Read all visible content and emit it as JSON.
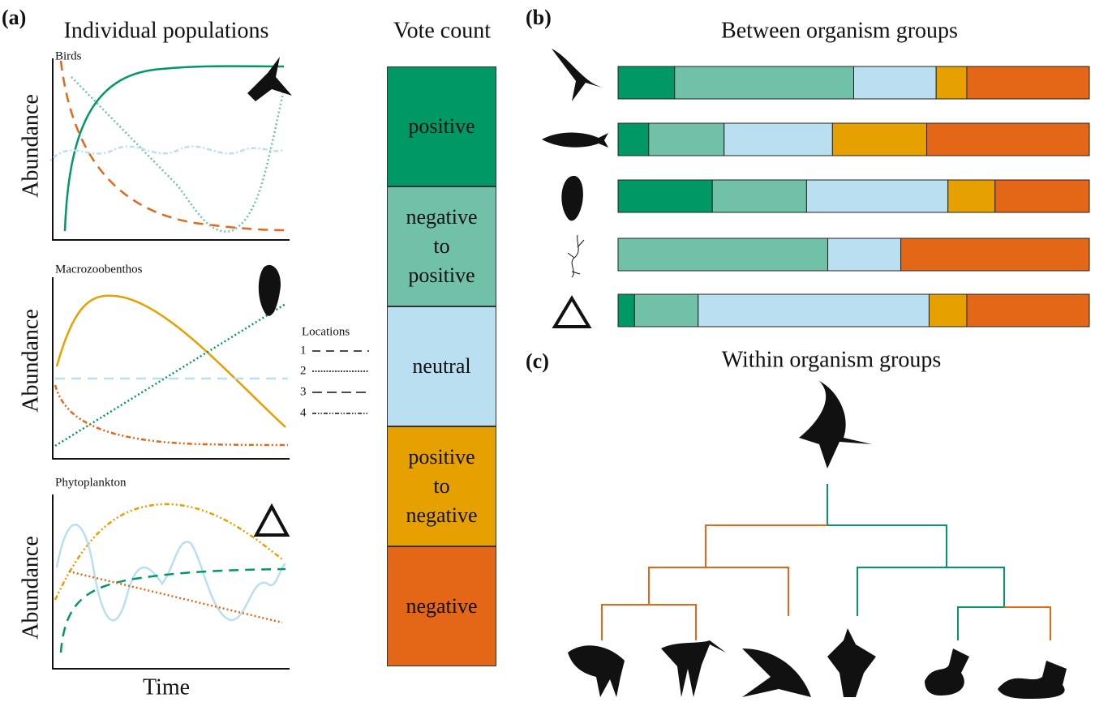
{
  "panels": {
    "a": "(a)",
    "b": "(b)",
    "c": "(c)"
  },
  "individual": {
    "title": "Individual populations",
    "xlabel": "Time",
    "ylabel": "Abundance",
    "plots": [
      {
        "name": "Birds"
      },
      {
        "name": "Macrozoobenthos"
      },
      {
        "name": "Phytoplankton"
      }
    ]
  },
  "locations": {
    "title": "Locations",
    "items": [
      "1",
      "2",
      "3",
      "4"
    ]
  },
  "vote": {
    "title": "Vote count",
    "categories": [
      "positive",
      "negative to positive",
      "neutral",
      "positive to negative",
      "negative"
    ],
    "colors": [
      "#009966",
      "#70c1a8",
      "#b9dff0",
      "#e6a000",
      "#e36717"
    ]
  },
  "between": {
    "title": "Between organism groups",
    "groups": [
      {
        "values": [
          12,
          38,
          17.5,
          6.5,
          26
        ]
      },
      {
        "values": [
          6.5,
          16,
          23,
          20,
          34.5
        ]
      },
      {
        "values": [
          20,
          20,
          30,
          10,
          20
        ]
      },
      {
        "values": [
          0,
          44.5,
          15.5,
          0,
          40
        ]
      },
      {
        "values": [
          3.5,
          13.5,
          49,
          8,
          26
        ]
      }
    ]
  },
  "within": {
    "title": "Within organism groups"
  }
}
